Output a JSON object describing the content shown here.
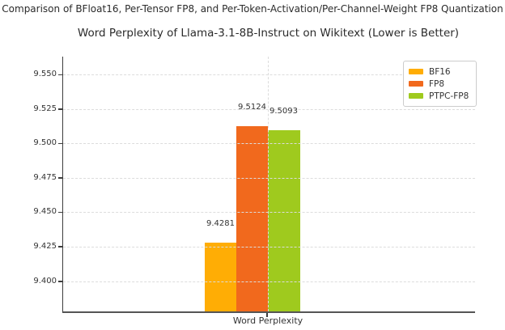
{
  "suptitle": "Comparison of BFloat16, Per-Tensor FP8, and Per-Token-Activation/Per-Channel-Weight FP8 Quantization",
  "chart_data": {
    "type": "bar",
    "title": "Word Perplexity of Llama-3.1-8B-Instruct on Wikitext (Lower is Better)",
    "categories": [
      "Word Perplexity"
    ],
    "series": [
      {
        "name": "BF16",
        "values": [
          9.4281
        ],
        "color": "#FFAD05"
      },
      {
        "name": "FP8",
        "values": [
          9.5124
        ],
        "color": "#F1691D"
      },
      {
        "name": "PTPC-FP8",
        "values": [
          9.5093
        ],
        "color": "#9FCA1E"
      }
    ],
    "value_labels": [
      "9.4281",
      "9.5124",
      "9.5093"
    ],
    "xlabel": "Word Perplexity",
    "ylabel": "",
    "ylim": [
      9.378,
      9.563
    ],
    "yticks": [
      9.55,
      9.525,
      9.5,
      9.475,
      9.45,
      9.425,
      9.4
    ],
    "ytick_decimals": 3,
    "grid": "dashed, light gray, horizontal at y-ticks plus one vertical at category tick",
    "legend_position": "upper right",
    "axis_color": "#3d3d3d",
    "grid_color": "#dcdcdc",
    "text_color": "#333333"
  }
}
